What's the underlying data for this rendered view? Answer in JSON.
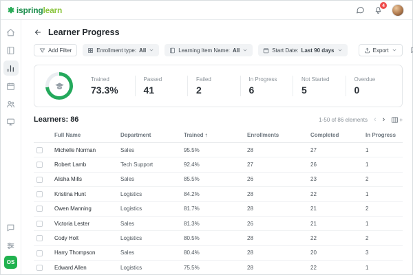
{
  "colors": {
    "accent_green": "#27ab56",
    "donut_green": "#24a95c",
    "donut_track": "#e9edf0",
    "badge_red": "#ef4b4b"
  },
  "brand": {
    "logo_prefix": "ispring",
    "logo_suffix": "learn",
    "logo_mark": "✱"
  },
  "topbar": {
    "notifications_badge": "4"
  },
  "page": {
    "title": "Learner Progress",
    "back_arrow": "←"
  },
  "filters": {
    "add_filter_label": "Add Filter",
    "chips": [
      {
        "label": "Enrollment type:",
        "value": "All"
      },
      {
        "label": "Learning Item Name:",
        "value": "All"
      },
      {
        "label": "Start Date:",
        "value": "Last 90 days"
      }
    ],
    "export_label": "Export",
    "more_label": "..."
  },
  "summary": {
    "donut": {
      "percent": 73.3
    },
    "stats": [
      {
        "label": "Trained",
        "value": "73.3%"
      },
      {
        "label": "Passed",
        "value": "41"
      },
      {
        "label": "Failed",
        "value": "2"
      },
      {
        "label": "In Progress",
        "value": "6"
      },
      {
        "label": "Not Started",
        "value": "5"
      },
      {
        "label": "Overdue",
        "value": "0"
      }
    ]
  },
  "learners": {
    "title": "Learners: 86",
    "pagination": "1-50 of 86 elements",
    "prev": "‹",
    "next": "›",
    "cols_plus": "+",
    "sort_arrow": "↑",
    "columns": [
      "Full Name",
      "Department",
      "Trained",
      "Enrollments",
      "Completed",
      "In Progress"
    ],
    "rows": [
      {
        "name": "Michelle Norman",
        "department": "Sales",
        "trained": "95.5%",
        "enrollments": "28",
        "completed": "27",
        "in_progress": "1"
      },
      {
        "name": "Robert Lamb",
        "department": "Tech Support",
        "trained": "92.4%",
        "enrollments": "27",
        "completed": "26",
        "in_progress": "1"
      },
      {
        "name": "Alisha Mills",
        "department": "Sales",
        "trained": "85.5%",
        "enrollments": "26",
        "completed": "23",
        "in_progress": "2"
      },
      {
        "name": "Kristina Hunt",
        "department": "Logistics",
        "trained": "84.2%",
        "enrollments": "28",
        "completed": "22",
        "in_progress": "1"
      },
      {
        "name": "Owen Manning",
        "department": "Logistics",
        "trained": "81.7%",
        "enrollments": "28",
        "completed": "21",
        "in_progress": "2"
      },
      {
        "name": "Victoria Lester",
        "department": "Sales",
        "trained": "81.3%",
        "enrollments": "26",
        "completed": "21",
        "in_progress": "1"
      },
      {
        "name": "Cody Holt",
        "department": "Logistics",
        "trained": "80.5%",
        "enrollments": "28",
        "completed": "22",
        "in_progress": "2"
      },
      {
        "name": "Harry Thompson",
        "department": "Sales",
        "trained": "80.4%",
        "enrollments": "28",
        "completed": "20",
        "in_progress": "3"
      },
      {
        "name": "Edward Allen",
        "department": "Logistics",
        "trained": "75.5%",
        "enrollments": "28",
        "completed": "22",
        "in_progress": "1"
      }
    ]
  },
  "sidebar": {
    "avatar_initials": "OS"
  }
}
